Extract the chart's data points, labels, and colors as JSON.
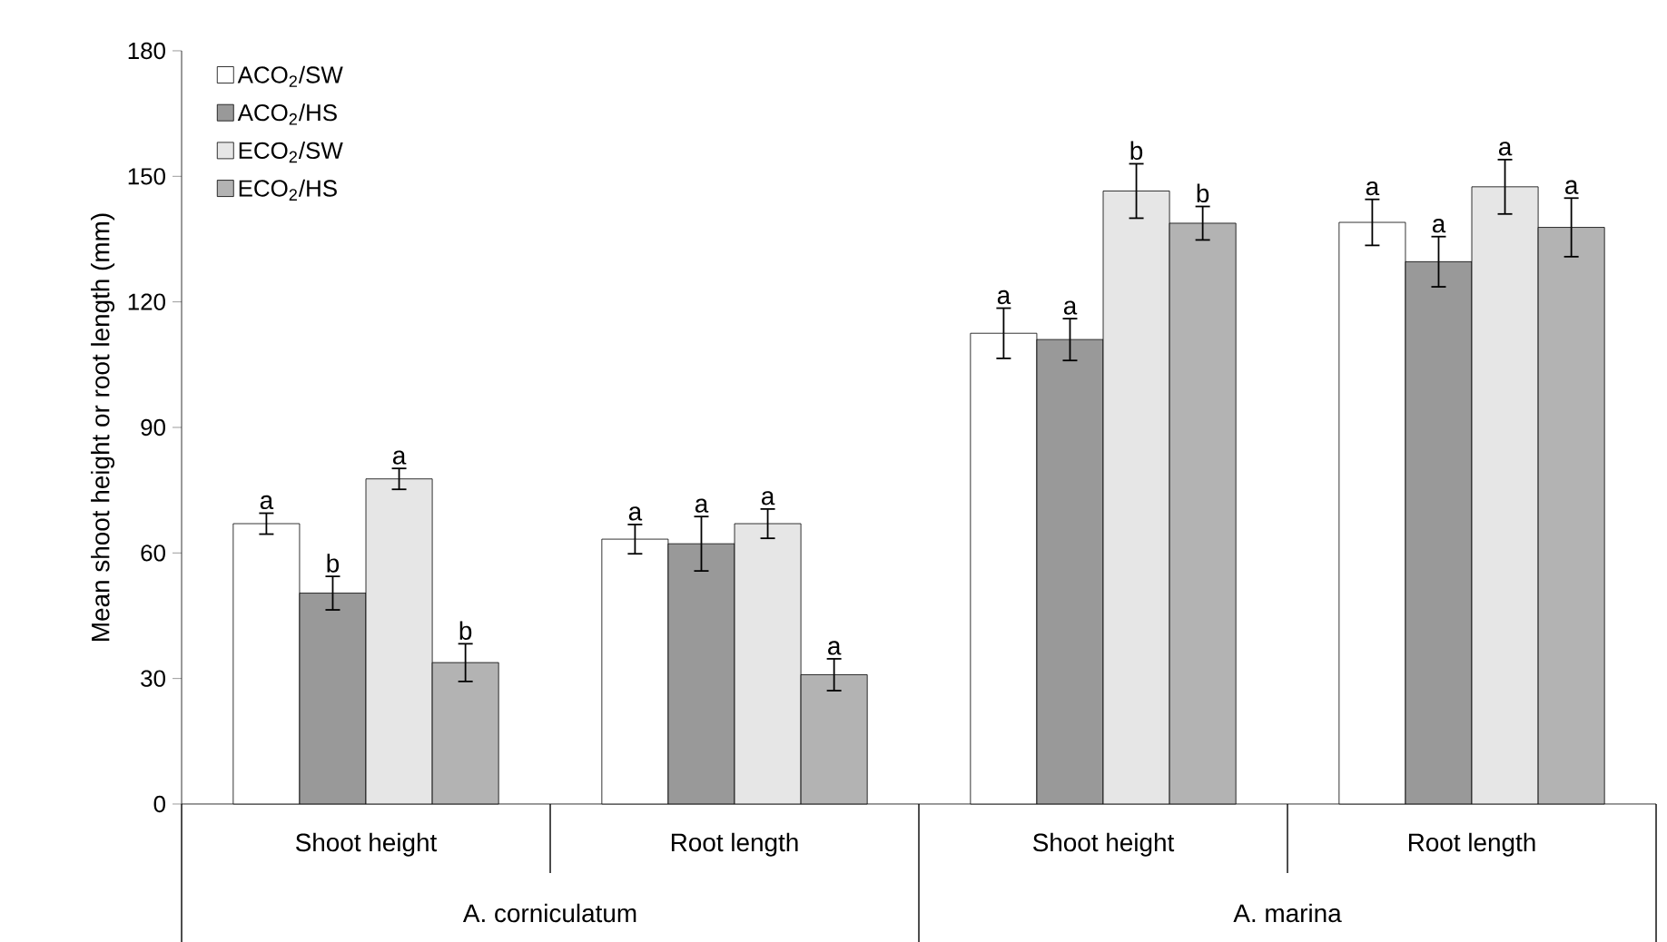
{
  "chart_data": {
    "type": "bar",
    "ylabel": "Mean shoot height or root length (mm)",
    "categories": [
      "Shoot height",
      "Root length",
      "Shoot height",
      "Root length"
    ],
    "series": [
      {
        "name": "ACO$_{2}$/SW",
        "color": "#ffffff",
        "values": [
          67,
          63.3,
          112.5,
          139
        ],
        "errors": [
          2.5,
          3.5,
          6,
          5.5
        ],
        "value_labels": [
          "a",
          "a",
          "a",
          "a"
        ]
      },
      {
        "name": "ACO$_{2}$/HS",
        "color": "#999999",
        "values": [
          50.4,
          62.2,
          111,
          129.6
        ],
        "errors": [
          4,
          6.5,
          5,
          6
        ],
        "value_labels": [
          "b",
          "a",
          "a",
          "a"
        ]
      },
      {
        "name": "ECO$_{2}$/SW",
        "color": "#e6e6e6",
        "values": [
          77.7,
          67,
          146.5,
          147.5
        ],
        "errors": [
          2.5,
          3.5,
          6.5,
          6.5
        ],
        "value_labels": [
          "a",
          "a",
          "b",
          "a"
        ]
      },
      {
        "name": "ECO$_{2}$/HS",
        "color": "#b3b3b3",
        "values": [
          33.8,
          30.9,
          138.8,
          137.8
        ],
        "errors": [
          4.5,
          3.8,
          4,
          7
        ],
        "value_labels": [
          "b",
          "a",
          "b",
          "a"
        ]
      }
    ],
    "annotations": [
      "A. corniculatum",
      "A. marina"
    ],
    "ylim": [
      0,
      180
    ],
    "yticks": [
      0,
      30,
      60,
      90,
      120,
      150,
      180
    ],
    "legend": "top left",
    "grid": false
  }
}
